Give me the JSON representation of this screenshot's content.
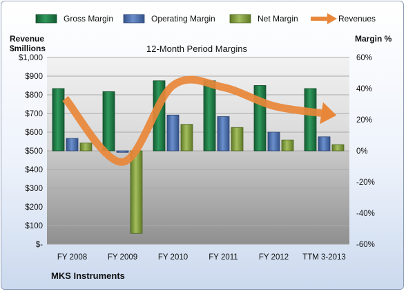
{
  "chart_data": {
    "type": "bar",
    "title": "12-Month Period Margins",
    "categories": [
      "FY 2008",
      "FY 2009",
      "FY 2010",
      "FY 2011",
      "FY 2012",
      "TTM 3-2013"
    ],
    "series": [
      {
        "name": "Gross Margin",
        "axis": "right",
        "values": [
          40,
          38,
          45,
          45,
          42,
          40
        ]
      },
      {
        "name": "Operating Margin",
        "axis": "right",
        "values": [
          8,
          -1,
          23,
          22,
          12,
          9
        ]
      },
      {
        "name": "Net Margin",
        "axis": "right",
        "values": [
          5,
          -53,
          17,
          15,
          7,
          4
        ]
      },
      {
        "name": "Revenues",
        "axis": "left",
        "type": "line",
        "values": [
          780,
          440,
          850,
          840,
          740,
          700
        ]
      }
    ],
    "left_axis": {
      "label_line1": "Revenue",
      "label_line2": "$millions",
      "ylim": [
        0,
        1000
      ],
      "ticks": [
        "$-",
        "$100",
        "$200",
        "$300",
        "$400",
        "$500",
        "$600",
        "$700",
        "$800",
        "$900",
        "$1,000"
      ]
    },
    "right_axis": {
      "label": "Margin %",
      "ylim": [
        -60,
        60
      ],
      "ticks": [
        "-60%",
        "-40%",
        "-20%",
        "0%",
        "20%",
        "40%",
        "60%"
      ]
    },
    "legend_position": "top",
    "footer": "MKS Instruments",
    "colors": {
      "Gross Margin": "#1f7a45",
      "Operating Margin": "#4a6fb0",
      "Net Margin": "#7f9a3c",
      "Revenues": "#e8873a"
    }
  }
}
